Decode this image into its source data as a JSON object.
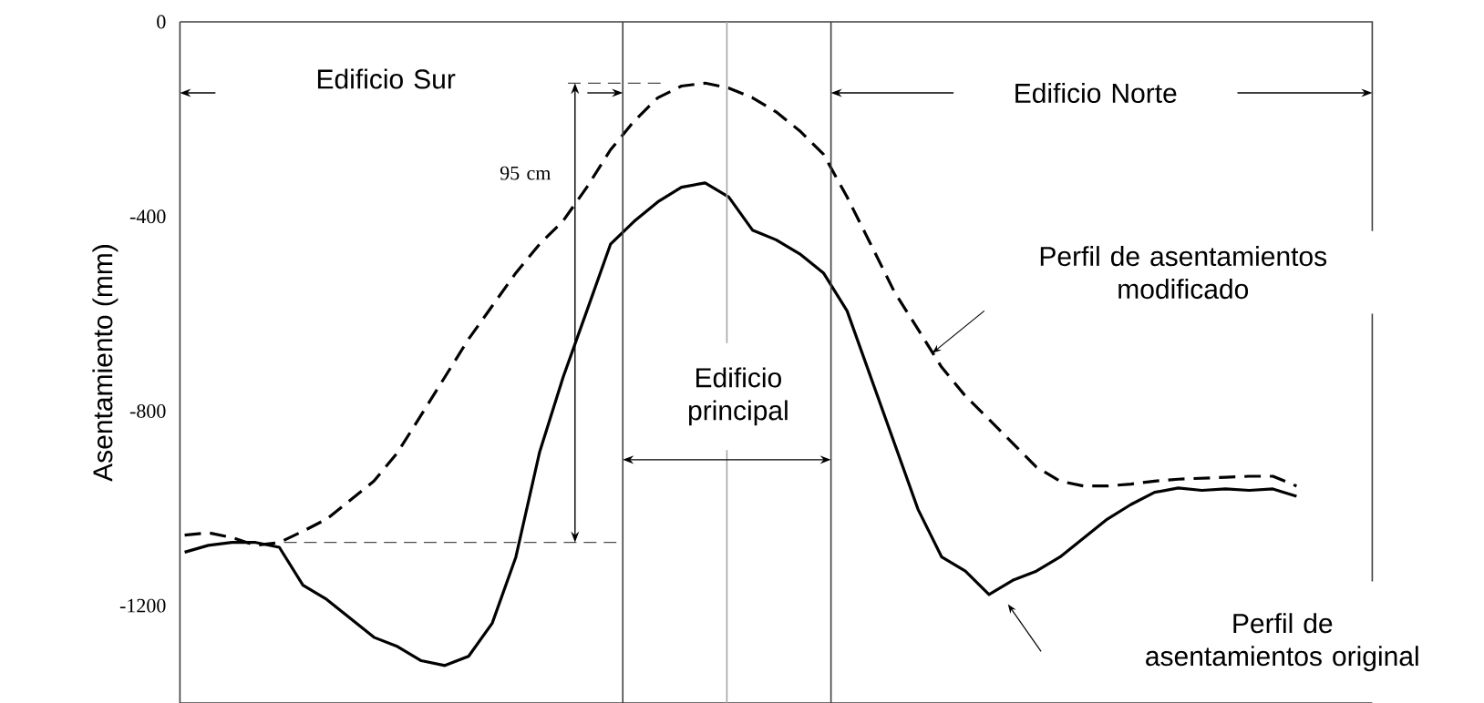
{
  "chart_data": {
    "type": "line",
    "ylabel": "Asentamiento (mm)",
    "categories": [
      null,
      null,
      null,
      null,
      null,
      null,
      null,
      null,
      null,
      null,
      null,
      null,
      null,
      null,
      null,
      null,
      null,
      null,
      null,
      null,
      null,
      null,
      null,
      null,
      null,
      null,
      null,
      null,
      null,
      null,
      null,
      null,
      null,
      null,
      null,
      null,
      null,
      null,
      null,
      null,
      null,
      null,
      null,
      null,
      null,
      null,
      null,
      null
    ],
    "series": [
      {
        "color": "#000000",
        "line_style": "dashed",
        "values": [
          -1055,
          -1050,
          -1060,
          -1076,
          -1070,
          -1047,
          -1022,
          -983,
          -944,
          -885,
          -808,
          -730,
          -652,
          -584,
          -516,
          -457,
          -409,
          -340,
          -263,
          -204,
          -156,
          -132,
          -126,
          -136,
          -156,
          -185,
          -224,
          -272,
          -360,
          -457,
          -555,
          -632,
          -710,
          -769,
          -817,
          -866,
          -915,
          -944,
          -954,
          -954,
          -950,
          -944,
          -940,
          -938,
          -936,
          -934,
          -934,
          -954
        ]
      },
      {
        "color": "#000000",
        "line_style": "solid",
        "values": [
          -1090,
          -1076,
          -1070,
          -1070,
          -1080,
          -1158,
          -1187,
          -1226,
          -1265,
          -1284,
          -1313,
          -1323,
          -1304,
          -1236,
          -1100,
          -885,
          -730,
          -594,
          -457,
          -410,
          -370,
          -340,
          -331,
          -360,
          -428,
          -448,
          -477,
          -516,
          -594,
          -730,
          -866,
          -1002,
          -1100,
          -1129,
          -1177,
          -1148,
          -1129,
          -1100,
          -1061,
          -1022,
          -992,
          -967,
          -958,
          -963,
          -960,
          -963,
          -960,
          -975
        ]
      }
    ],
    "ylim": [
      -1400,
      0
    ],
    "yticks": [
      -1200,
      -800,
      -400,
      0
    ],
    "grid": false,
    "annotations": [
      "Edificio Sur",
      "Edificio Norte",
      "Edificio principal",
      "95 cm",
      "Perfil de asentamientos modificado",
      "Perfil de asentamientos original"
    ]
  }
}
